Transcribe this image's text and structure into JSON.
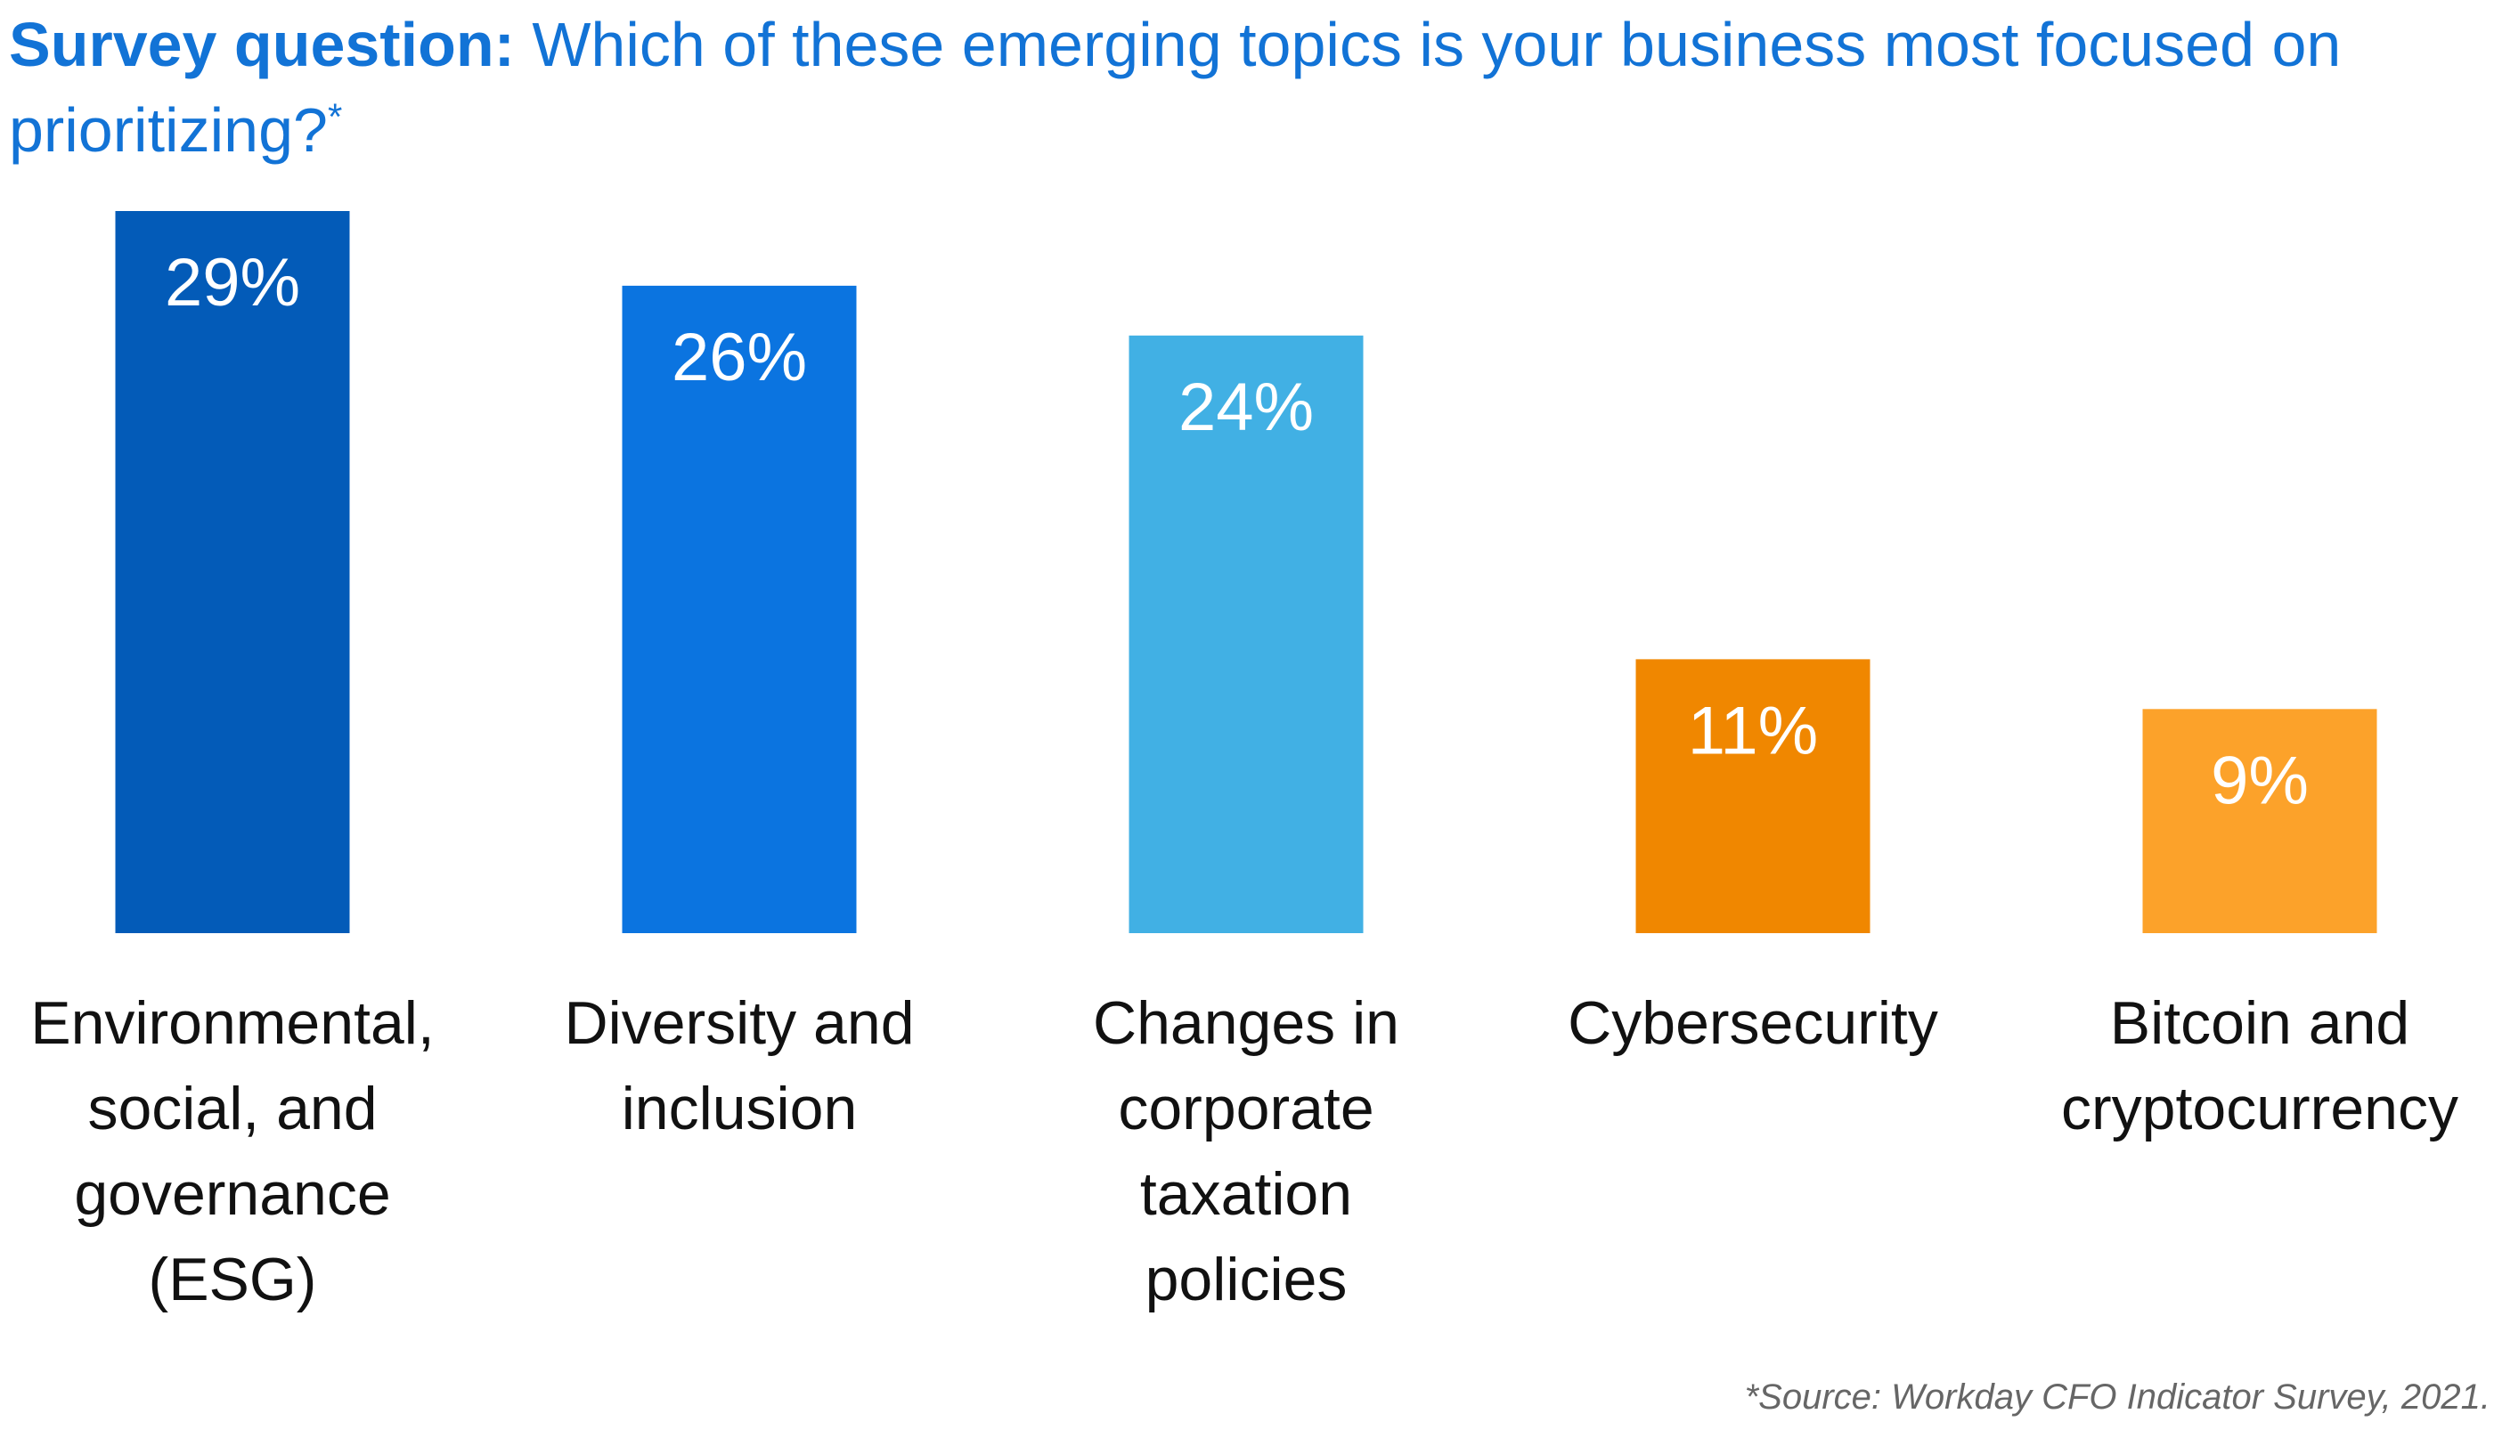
{
  "title": {
    "lead": "Survey question:",
    "text": "Which of these emerging topics is your business most focused on prioritizing?",
    "asterisk": "*"
  },
  "source": "*Source: Workday CFO Indicator Survey, 2021.",
  "chart_data": {
    "type": "bar",
    "title": "Survey question: Which of these emerging topics is your business most focused on prioritizing?*",
    "categories": [
      "Environmental, social, and governance (ESG)",
      "Diversity and inclusion",
      "Changes in corporate taxation policies",
      "Cybersecurity",
      "Bitcoin and cryptocurrency"
    ],
    "category_lines": [
      [
        "Environmental,",
        "social, and",
        "governance",
        "(ESG)"
      ],
      [
        "Diversity and",
        "inclusion"
      ],
      [
        "Changes in",
        "corporate",
        "taxation",
        "policies"
      ],
      [
        "Cybersecurity"
      ],
      [
        "Bitcoin and",
        "cryptocurrency"
      ]
    ],
    "values": [
      29,
      26,
      24,
      11,
      9
    ],
    "value_labels": [
      "29%",
      "26%",
      "24%",
      "11%",
      "9%"
    ],
    "colors": [
      "#035bb8",
      "#0b74e0",
      "#41b0e4",
      "#f08700",
      "#fca22a"
    ],
    "xlabel": "",
    "ylabel": "",
    "ylim": [
      0,
      29
    ],
    "grid": false,
    "legend": "none"
  }
}
